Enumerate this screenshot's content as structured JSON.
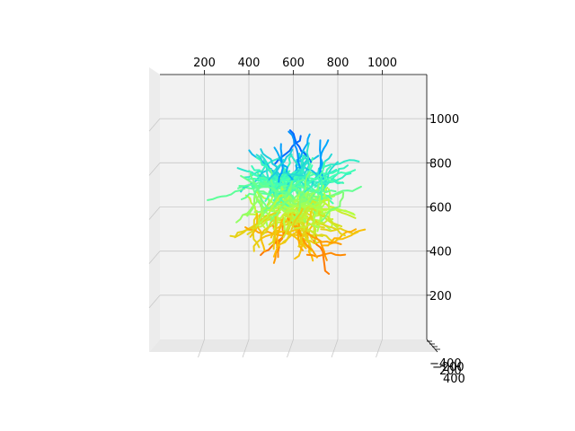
{
  "chart_data": {
    "type": "line",
    "projection": "3d",
    "title": "",
    "colormap": "jet",
    "colormap_stops": [
      "#00007f",
      "#0000ff",
      "#00a4ff",
      "#3fffb7",
      "#b7ff3f",
      "#ffb900",
      "#ff3000",
      "#7f0000"
    ],
    "grid": true,
    "pane_color": "#f2f2f2",
    "xaxis": {
      "label": "",
      "ticks": [
        200,
        400,
        600,
        800,
        1000
      ],
      "range": [
        0,
        1200
      ]
    },
    "zaxis": {
      "label": "",
      "ticks": [
        200,
        400,
        600,
        800,
        1000
      ],
      "range": [
        0,
        1200
      ]
    },
    "yaxis": {
      "label": "",
      "ticks": [
        -400,
        -200,
        200,
        400
      ],
      "tick_labels": [
        "−400",
        "−200",
        "200",
        "400"
      ]
    },
    "cluster": {
      "x_center": 600,
      "x_spread": 480,
      "z_center": 620,
      "z_spread": 480,
      "trace_count": 220,
      "points_per_trace": 9
    }
  }
}
